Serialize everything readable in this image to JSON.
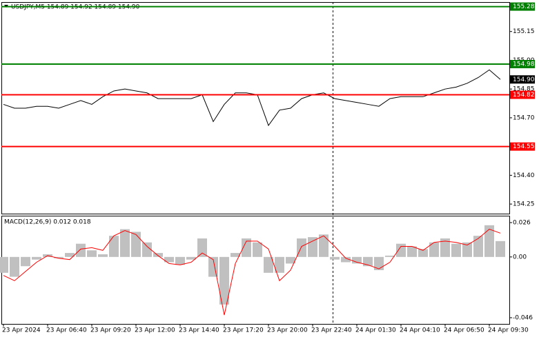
{
  "chart_data": [
    {
      "type": "line",
      "title": "USDJPY,M5  154.89 154.92 154.89 154.90",
      "color": "#000000",
      "values": [
        154.77,
        154.75,
        154.75,
        154.76,
        154.76,
        154.75,
        154.77,
        154.79,
        154.77,
        154.81,
        154.84,
        154.85,
        154.84,
        154.83,
        154.8,
        154.8,
        154.8,
        154.8,
        154.82,
        154.68,
        154.77,
        154.83,
        154.83,
        154.82,
        154.66,
        154.74,
        154.75,
        154.8,
        154.82,
        154.83,
        154.8,
        154.79,
        154.78,
        154.77,
        154.76,
        154.8,
        154.81,
        154.81,
        154.81,
        154.83,
        154.85,
        154.86,
        154.88,
        154.91,
        154.95,
        154.9
      ],
      "ylim": [
        154.2,
        155.3
      ],
      "yticks": [
        155.15,
        {
          "value": 155,
          "label": "155.00"
        },
        154.85,
        {
          "value": 154.7,
          "label": "154.70"
        },
        {
          "value": 154.4,
          "label": "154.40"
        },
        154.25
      ],
      "levels": [
        {
          "value": 155.28,
          "color": "#008000"
        },
        {
          "value": 154.98,
          "color": "#008000"
        },
        {
          "value": 154.82,
          "color": "#ff0000"
        },
        {
          "value": 154.55,
          "color": "#ff0000"
        }
      ],
      "last_price": {
        "value": 154.9,
        "label": "154.90"
      }
    },
    {
      "type": "bar",
      "title": "MACD(12,26,9) 0.012 0.018",
      "categories": [
        "23 Apr 2024",
        null,
        null,
        null,
        "23 Apr 06:40",
        null,
        null,
        null,
        "23 Apr 09:20",
        null,
        null,
        null,
        "23 Apr 12:00",
        null,
        null,
        null,
        "23 Apr 14:40",
        null,
        null,
        null,
        "23 Apr 17:20",
        null,
        null,
        null,
        "23 Apr 20:00",
        null,
        null,
        null,
        "23 Apr 22:40",
        null,
        null,
        null,
        "24 Apr 01:30",
        null,
        null,
        null,
        "24 Apr 04:10",
        null,
        null,
        null,
        "24 Apr 06:50",
        null,
        null,
        null,
        "24 Apr 09:30",
        null
      ],
      "series": [
        {
          "color": "#c0c0c0",
          "values": [
            -0.012,
            -0.015,
            -0.007,
            -0.002,
            0.002,
            -0.001,
            0.003,
            0.01,
            0.005,
            0.002,
            0.016,
            0.021,
            0.019,
            0.011,
            0.003,
            -0.004,
            -0.006,
            -0.002,
            0.014,
            -0.015,
            -0.036,
            0.003,
            0.014,
            0.011,
            -0.012,
            -0.012,
            -0.005,
            0.014,
            0.015,
            0.017,
            -0.002,
            -0.004,
            -0.005,
            -0.007,
            -0.01,
            0.001,
            0.01,
            0.008,
            0.006,
            0.011,
            0.014,
            0.01,
            0.011,
            0.016,
            0.024,
            0.012
          ]
        },
        {
          "type": "line",
          "color": "#ff0000",
          "values": [
            -0.014,
            -0.018,
            -0.011,
            -0.004,
            0.001,
            -0.001,
            -0.002,
            0.006,
            0.007,
            0.005,
            0.016,
            0.02,
            0.017,
            0.008,
            0.001,
            -0.005,
            -0.006,
            -0.004,
            0.003,
            -0.002,
            -0.044,
            -0.005,
            0.012,
            0.012,
            0.006,
            -0.018,
            -0.01,
            0.008,
            0.012,
            0.016,
            0.008,
            -0.001,
            -0.004,
            -0.006,
            -0.009,
            -0.004,
            0.008,
            0.008,
            0.005,
            0.011,
            0.012,
            0.011,
            0.009,
            0.014,
            0.021,
            0.018
          ]
        }
      ],
      "ylim": [
        -0.0507,
        0.0307
      ],
      "yticks": [
        0.026,
        {
          "value": 0,
          "label": "0.00"
        },
        -0.046
      ]
    }
  ]
}
